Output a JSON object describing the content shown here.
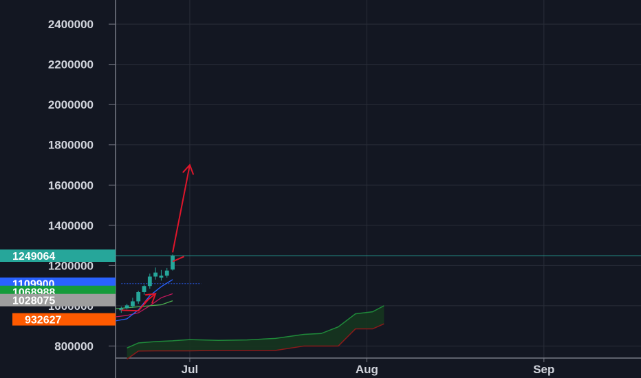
{
  "chart_data": {
    "type": "candlestick",
    "title": "",
    "y_axis": {
      "ticks": [
        800000,
        1000000,
        1200000,
        1400000,
        1600000,
        1800000,
        2000000,
        2200000,
        2400000
      ],
      "tick_labels": [
        "800000",
        "1000000",
        "1200000",
        "1400000",
        "1600000",
        "1800000",
        "2000000",
        "2200000",
        "2400000"
      ],
      "range": [
        740000,
        2520000
      ],
      "position": "left"
    },
    "x_axis": {
      "ticks": [
        "2024-07-01",
        "2024-08-01",
        "2024-09-01"
      ],
      "tick_labels": [
        "Jul",
        "Aug",
        "Sep"
      ],
      "range": [
        "2024-06-18",
        "2024-09-18"
      ]
    },
    "grid": true,
    "candles": [
      {
        "date": "2024-06-19",
        "open": 978000,
        "high": 996000,
        "low": 965000,
        "close": 988000
      },
      {
        "date": "2024-06-20",
        "open": 988000,
        "high": 1010000,
        "low": 982000,
        "close": 1002000
      },
      {
        "date": "2024-06-21",
        "open": 998000,
        "high": 1040000,
        "low": 990000,
        "close": 1022000
      },
      {
        "date": "2024-06-22",
        "open": 1022000,
        "high": 1075000,
        "low": 1010000,
        "close": 1068000
      },
      {
        "date": "2024-06-23",
        "open": 1068000,
        "high": 1105000,
        "low": 1055000,
        "close": 1098000
      },
      {
        "date": "2024-06-24",
        "open": 1098000,
        "high": 1160000,
        "low": 1085000,
        "close": 1145000
      },
      {
        "date": "2024-06-25",
        "open": 1145000,
        "high": 1190000,
        "low": 1130000,
        "close": 1165000
      },
      {
        "date": "2024-06-26",
        "open": 1140000,
        "high": 1178000,
        "low": 1125000,
        "close": 1150000
      },
      {
        "date": "2024-06-27",
        "open": 1150000,
        "high": 1188000,
        "low": 1140000,
        "close": 1175000
      },
      {
        "date": "2024-06-28",
        "open": 1180000,
        "high": 1255000,
        "low": 1175000,
        "close": 1249064
      }
    ],
    "indicator_lines": [
      {
        "color": "#c2185b",
        "values": [
          [
            "2024-06-18",
            945000
          ],
          [
            "2024-06-20",
            952000
          ],
          [
            "2024-06-22",
            965000
          ],
          [
            "2024-06-24",
            1000000
          ],
          [
            "2024-06-26",
            1040000
          ],
          [
            "2024-06-28",
            1060000
          ]
        ]
      },
      {
        "color": "#2962ff",
        "values": [
          [
            "2024-06-18",
            925000
          ],
          [
            "2024-06-20",
            935000
          ],
          [
            "2024-06-22",
            980000
          ],
          [
            "2024-06-24",
            1050000
          ],
          [
            "2024-06-26",
            1095000
          ],
          [
            "2024-06-28",
            1130000
          ]
        ]
      },
      {
        "color": "#4caf50",
        "values": [
          [
            "2024-06-18",
            985000
          ],
          [
            "2024-06-20",
            990000
          ],
          [
            "2024-06-22",
            995000
          ],
          [
            "2024-06-24",
            1000000
          ],
          [
            "2024-06-26",
            1005000
          ],
          [
            "2024-06-28",
            1025000
          ]
        ]
      }
    ],
    "cloud": {
      "upper_color": "#1f8a3a",
      "lower_color": "#8b1a1a",
      "fill_color": "#16351f",
      "upper": [
        [
          "2024-06-20",
          790000
        ],
        [
          "2024-06-22",
          815000
        ],
        [
          "2024-06-25",
          822000
        ],
        [
          "2024-06-28",
          826000
        ],
        [
          "2024-07-01",
          832000
        ],
        [
          "2024-07-06",
          828000
        ],
        [
          "2024-07-11",
          830000
        ],
        [
          "2024-07-16",
          838000
        ],
        [
          "2024-07-21",
          858000
        ],
        [
          "2024-07-24",
          862000
        ],
        [
          "2024-07-27",
          895000
        ],
        [
          "2024-07-30",
          960000
        ],
        [
          "2024-08-02",
          970000
        ],
        [
          "2024-08-04",
          1000000
        ]
      ],
      "lower": [
        [
          "2024-06-20",
          735000
        ],
        [
          "2024-06-22",
          775000
        ],
        [
          "2024-06-25",
          776000
        ],
        [
          "2024-06-28",
          776000
        ],
        [
          "2024-07-01",
          776000
        ],
        [
          "2024-07-06",
          778000
        ],
        [
          "2024-07-11",
          778000
        ],
        [
          "2024-07-16",
          778000
        ],
        [
          "2024-07-21",
          800000
        ],
        [
          "2024-07-24",
          800000
        ],
        [
          "2024-07-27",
          800000
        ],
        [
          "2024-07-30",
          885000
        ],
        [
          "2024-08-02",
          885000
        ],
        [
          "2024-08-04",
          910000
        ]
      ]
    },
    "horizontal_lines": [
      {
        "value": 1249064,
        "color": "#26a69a",
        "from": "2024-06-18",
        "to": "2024-09-18"
      },
      {
        "value": 1109900,
        "color": "#2962ff",
        "from": "2024-06-19",
        "to": "2024-07-03",
        "dashed": true
      }
    ],
    "price_tags": [
      {
        "label": "1249064",
        "value": 1249064,
        "color": "#26a69a"
      },
      {
        "label": "1109900",
        "value": 1109900,
        "color": "#2962ff"
      },
      {
        "label": "1068988",
        "value": 1068988,
        "color": "#159b3a"
      },
      {
        "label": "1028075",
        "value": 1028075,
        "color": "#9e9e9e"
      },
      {
        "label": "932627",
        "value": 932627,
        "color": "#ff5a00"
      }
    ],
    "annotations": [
      {
        "kind": "arrow",
        "color": "#e0162b",
        "from": [
          "2024-06-28",
          1265000
        ],
        "to": [
          "2024-07-01",
          1700000
        ]
      },
      {
        "kind": "arrow",
        "color": "#e0162b",
        "from": [
          "2024-06-23",
          1015000
        ],
        "to": [
          "2024-06-25",
          1060000
        ]
      },
      {
        "kind": "polyline",
        "color": "#e0162b",
        "points": [
          [
            "2024-06-19",
            978000
          ],
          [
            "2024-06-22",
            975000
          ],
          [
            "2024-06-24",
            1040000
          ]
        ]
      },
      {
        "kind": "polyline",
        "color": "#e0162b",
        "points": [
          [
            "2024-06-28",
            1220000
          ],
          [
            "2024-06-30",
            1245000
          ]
        ]
      }
    ],
    "colors": {
      "background": "#131722",
      "grid": "#2a2e39",
      "up_candle": "#26a69a",
      "axis_text": "#d1d4dc"
    }
  }
}
